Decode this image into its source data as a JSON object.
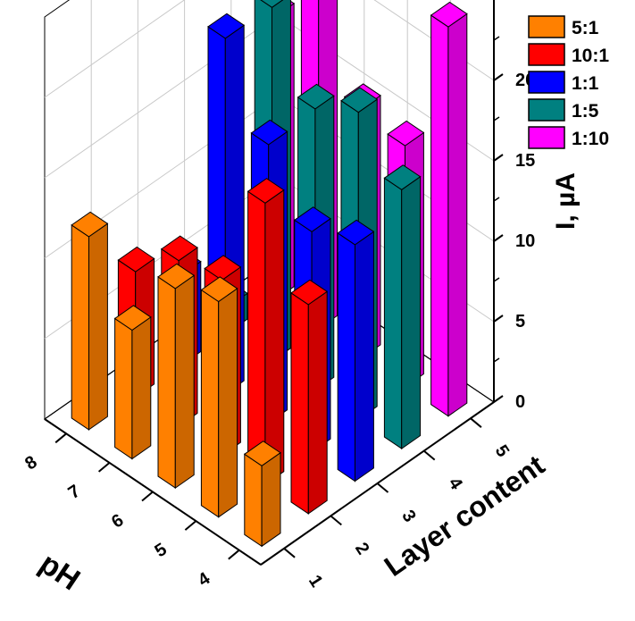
{
  "chart_data": {
    "type": "bar3d",
    "x_axis": {
      "label": "pH",
      "ticks": [
        "4",
        "5",
        "6",
        "7",
        "8"
      ]
    },
    "y_axis": {
      "label": "Layer content",
      "ticks": [
        "1",
        "2",
        "3",
        "4",
        "5"
      ]
    },
    "z_axis": {
      "label": "I, µA",
      "ticks": [
        "0",
        "5",
        "10",
        "15",
        "20"
      ],
      "range": [
        0,
        25
      ]
    },
    "grid": true,
    "legend_position": "top-right",
    "series": [
      {
        "name": "5:1",
        "color": "#ff8000",
        "layer": 1,
        "points": [
          {
            "pH": 4,
            "I": 5.0
          },
          {
            "pH": 5,
            "I": 13.4
          },
          {
            "pH": 6,
            "I": 12.4
          },
          {
            "pH": 7,
            "I": 8.0
          },
          {
            "pH": 8,
            "I": 12.0
          }
        ]
      },
      {
        "name": "10:1",
        "color": "#ff0000",
        "layer": 2,
        "points": [
          {
            "pH": 4,
            "I": 13.0
          },
          {
            "pH": 5,
            "I": 17.5
          },
          {
            "pH": 6,
            "I": 10.9
          },
          {
            "pH": 7,
            "I": 10.3
          },
          {
            "pH": 8,
            "I": 7.8
          }
        ]
      },
      {
        "name": "1:1",
        "color": "#0000ff",
        "layer": 3,
        "points": [
          {
            "pH": 4,
            "I": 14.7
          },
          {
            "pH": 5,
            "I": 13.7
          },
          {
            "pH": 6,
            "I": 17.3
          },
          {
            "pH": 7,
            "I": 22.1
          },
          {
            "pH": 8,
            "I": 5.6
          }
        ]
      },
      {
        "name": "1:5",
        "color": "#008080",
        "layer": 4,
        "points": [
          {
            "pH": 4,
            "I": 16.1
          },
          {
            "pH": 5,
            "I": 19.1
          },
          {
            "pH": 6,
            "I": 17.5
          },
          {
            "pH": 7,
            "I": 22.0
          },
          {
            "pH": 8,
            "I": 1.6
          }
        ]
      },
      {
        "name": "1:10",
        "color": "#ff00ff",
        "layer": 5,
        "points": [
          {
            "pH": 4,
            "I": 24.2
          },
          {
            "pH": 5,
            "I": 15.0
          },
          {
            "pH": 6,
            "I": 15.5
          },
          {
            "pH": 7,
            "I": 27.8
          },
          {
            "pH": 8,
            "I": 17.6
          }
        ]
      }
    ]
  }
}
